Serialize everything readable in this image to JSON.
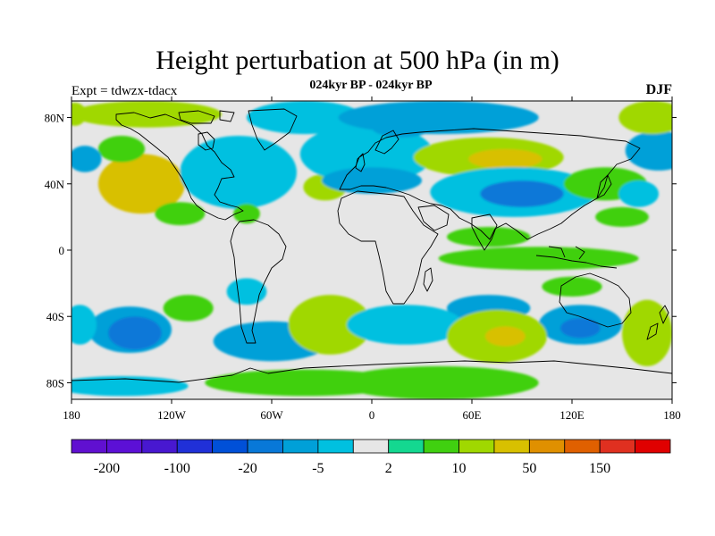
{
  "title": "Height perturbation at 500 hPa (in m)",
  "subtitle": "024kyr BP - 024kyr BP",
  "left_string": "Expt = tdwzx-tdacx",
  "right_string": "DJF",
  "map": {
    "projection": "cylindrical-equidistant",
    "lon_range": [
      -180,
      180
    ],
    "lat_range": [
      -90,
      90
    ],
    "background_color": "#e6e6e6",
    "coastline_color": "#000000",
    "x_ticks": [
      {
        "value": -180,
        "label": "180"
      },
      {
        "value": -120,
        "label": "120W"
      },
      {
        "value": -60,
        "label": "60W"
      },
      {
        "value": 0,
        "label": "0"
      },
      {
        "value": 60,
        "label": "60E"
      },
      {
        "value": 120,
        "label": "120E"
      },
      {
        "value": 180,
        "label": "180"
      }
    ],
    "y_ticks": [
      {
        "value": 80,
        "label": "80N"
      },
      {
        "value": 40,
        "label": "40N"
      },
      {
        "value": 0,
        "label": "0"
      },
      {
        "value": -40,
        "label": "40S"
      },
      {
        "value": -80,
        "label": "80S"
      }
    ],
    "fields": [
      {
        "lon": -178,
        "lat": 82,
        "rx": 7,
        "ry": 7,
        "value": 10
      },
      {
        "lon": -135,
        "lat": 82,
        "rx": 45,
        "ry": 8,
        "value": 15
      },
      {
        "lon": -138,
        "lat": 40,
        "rx": 26,
        "ry": 18,
        "value": 35
      },
      {
        "lon": -115,
        "lat": 22,
        "rx": 15,
        "ry": 7,
        "value": 8
      },
      {
        "lon": -80,
        "lat": 47,
        "rx": 35,
        "ry": 22,
        "value": -5
      },
      {
        "lon": -40,
        "lat": 80,
        "rx": 35,
        "ry": 10,
        "value": -5
      },
      {
        "lon": -28,
        "lat": 38,
        "rx": 13,
        "ry": 8,
        "value": 12
      },
      {
        "lon": -75,
        "lat": 22,
        "rx": 8,
        "ry": 6,
        "value": 8
      },
      {
        "lon": -20,
        "lat": 60,
        "rx": 22,
        "ry": 8,
        "value": -6
      },
      {
        "lon": -150,
        "lat": 61,
        "rx": 14,
        "ry": 8,
        "value": 6
      },
      {
        "lon": -172,
        "lat": 55,
        "rx": 10,
        "ry": 8,
        "value": -6
      },
      {
        "lon": -5,
        "lat": 52,
        "rx": 8,
        "ry": 6,
        "value": 6
      },
      {
        "lon": -3,
        "lat": 58,
        "rx": 40,
        "ry": 18,
        "value": -5
      },
      {
        "lon": 40,
        "lat": 80,
        "rx": 60,
        "ry": 10,
        "value": -10
      },
      {
        "lon": 18,
        "lat": 74,
        "rx": 18,
        "ry": 6,
        "value": -8
      },
      {
        "lon": 0,
        "lat": 42,
        "rx": 30,
        "ry": 8,
        "value": -6
      },
      {
        "lon": 70,
        "lat": 56,
        "rx": 45,
        "ry": 12,
        "value": 15
      },
      {
        "lon": 80,
        "lat": 55,
        "rx": 22,
        "ry": 6,
        "value": 25
      },
      {
        "lon": 85,
        "lat": 35,
        "rx": 50,
        "ry": 15,
        "value": -5
      },
      {
        "lon": 90,
        "lat": 34,
        "rx": 25,
        "ry": 8,
        "value": -15
      },
      {
        "lon": 70,
        "lat": 8,
        "rx": 25,
        "ry": 6,
        "value": 6
      },
      {
        "lon": 100,
        "lat": -5,
        "rx": 60,
        "ry": 7,
        "value": 8
      },
      {
        "lon": 140,
        "lat": 40,
        "rx": 25,
        "ry": 10,
        "value": 6
      },
      {
        "lon": 172,
        "lat": 60,
        "rx": 20,
        "ry": 12,
        "value": -6
      },
      {
        "lon": 168,
        "lat": 80,
        "rx": 20,
        "ry": 10,
        "value": 15
      },
      {
        "lon": 160,
        "lat": 34,
        "rx": 12,
        "ry": 8,
        "value": -5
      },
      {
        "lon": 150,
        "lat": 20,
        "rx": 16,
        "ry": 6,
        "value": 5
      },
      {
        "lon": 120,
        "lat": -22,
        "rx": 18,
        "ry": 6,
        "value": 5
      },
      {
        "lon": 70,
        "lat": -35,
        "rx": 25,
        "ry": 8,
        "value": -6
      },
      {
        "lon": 125,
        "lat": -45,
        "rx": 25,
        "ry": 12,
        "value": -6
      },
      {
        "lon": 125,
        "lat": -47,
        "rx": 12,
        "ry": 6,
        "value": -15
      },
      {
        "lon": 165,
        "lat": -50,
        "rx": 15,
        "ry": 20,
        "value": 10
      },
      {
        "lon": -145,
        "lat": -48,
        "rx": 25,
        "ry": 14,
        "value": -8
      },
      {
        "lon": -142,
        "lat": -50,
        "rx": 16,
        "ry": 10,
        "value": -15
      },
      {
        "lon": -175,
        "lat": -45,
        "rx": 10,
        "ry": 12,
        "value": -5
      },
      {
        "lon": -110,
        "lat": -35,
        "rx": 15,
        "ry": 8,
        "value": 8
      },
      {
        "lon": -75,
        "lat": -25,
        "rx": 12,
        "ry": 8,
        "value": -5
      },
      {
        "lon": -60,
        "lat": -55,
        "rx": 35,
        "ry": 12,
        "value": -6
      },
      {
        "lon": -25,
        "lat": -45,
        "rx": 25,
        "ry": 18,
        "value": 10
      },
      {
        "lon": 20,
        "lat": -45,
        "rx": 35,
        "ry": 12,
        "value": -5
      },
      {
        "lon": 75,
        "lat": -52,
        "rx": 30,
        "ry": 16,
        "value": 12
      },
      {
        "lon": 80,
        "lat": -52,
        "rx": 12,
        "ry": 6,
        "value": 30
      },
      {
        "lon": 40,
        "lat": -80,
        "rx": 60,
        "ry": 10,
        "value": 5
      },
      {
        "lon": -40,
        "lat": -80,
        "rx": 60,
        "ry": 8,
        "value": 5
      },
      {
        "lon": -150,
        "lat": -82,
        "rx": 40,
        "ry": 6,
        "value": -5
      }
    ]
  },
  "colorbar": {
    "colors": [
      "#6010d0",
      "#5c10d6",
      "#4818d0",
      "#2030d8",
      "#0050d8",
      "#0878d8",
      "#00a0d8",
      "#00c0e0",
      "#e6e6e6",
      "#14d890",
      "#40d010",
      "#a0d800",
      "#d8c000",
      "#e09000",
      "#e06000",
      "#e03020",
      "#e00000"
    ],
    "labels": [
      "-200",
      "-100",
      "-20",
      "-5",
      "2",
      "10",
      "50",
      "150"
    ],
    "levels": [
      -200,
      -150,
      -100,
      -50,
      -20,
      -10,
      -5,
      -2,
      2,
      5,
      10,
      20,
      50,
      100,
      150,
      200
    ]
  }
}
